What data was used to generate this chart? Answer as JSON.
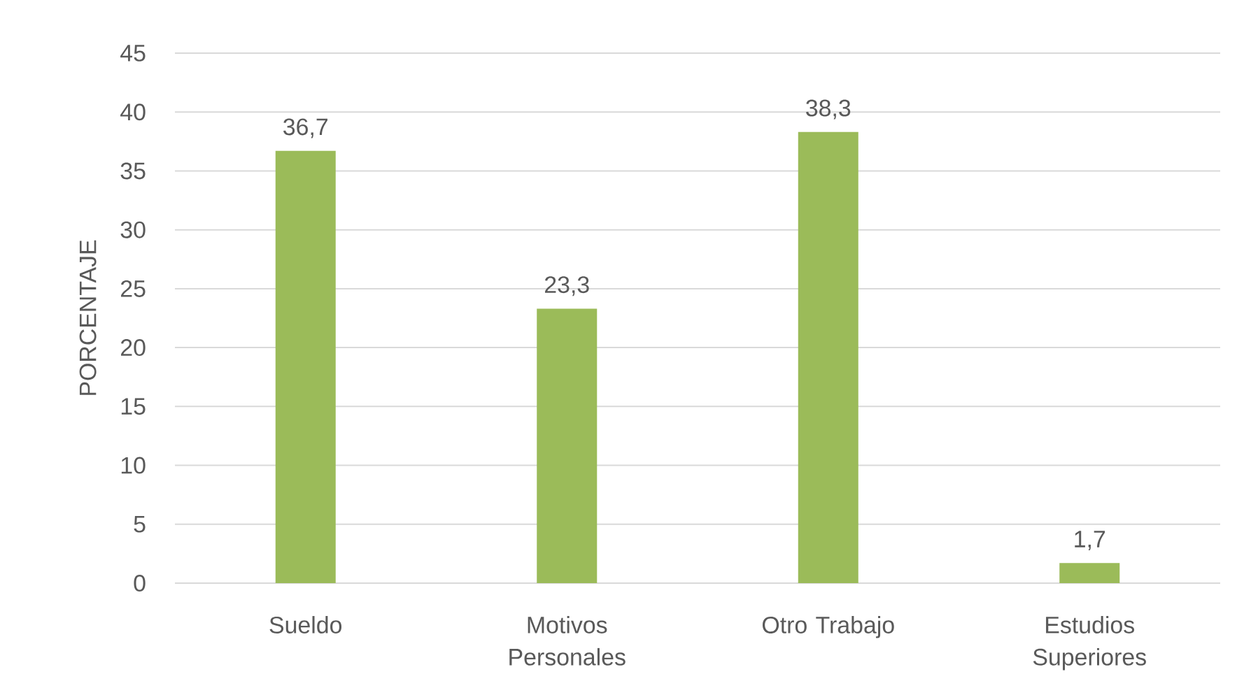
{
  "chart_data": {
    "type": "bar",
    "categories": [
      "Sueldo",
      "Motivos Personales",
      "Otro Trabajo",
      "Estudios Superiores"
    ],
    "values": [
      36.7,
      23.3,
      38.3,
      1.7
    ],
    "value_labels": [
      "36,7",
      "23,3",
      "38,3",
      "1,7"
    ],
    "color": "#9bbb59",
    "ylabel": "PORCENTAJE",
    "ylim": [
      0,
      45
    ],
    "yticks": [
      0,
      5,
      10,
      15,
      20,
      25,
      30,
      35,
      40,
      45
    ],
    "grid": "y"
  }
}
